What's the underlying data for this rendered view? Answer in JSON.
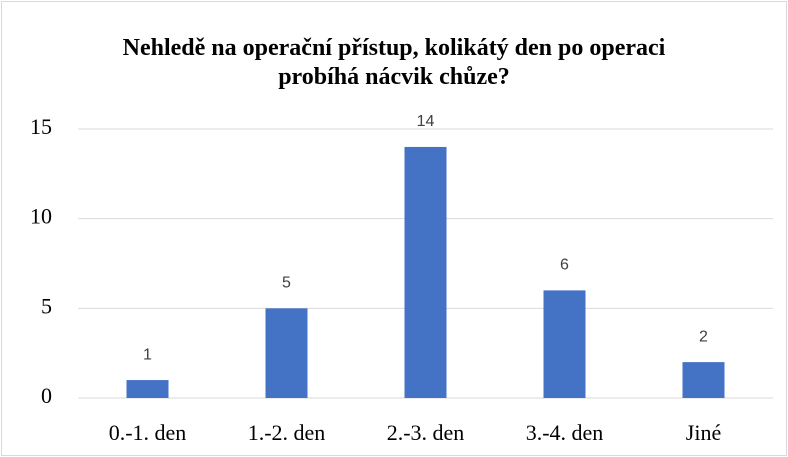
{
  "chart_data": {
    "type": "bar",
    "title": "Nehledě na operační přístup, kolikátý den po operaci probíhá nácvik chůze?",
    "categories": [
      "0.-1. den",
      "1.-2. den",
      "2.-3. den",
      "3.-4. den",
      "Jiné"
    ],
    "values": [
      1,
      5,
      14,
      6,
      2
    ],
    "color": "#4472c4",
    "ylim": [
      0,
      15
    ],
    "yticks": [
      0,
      5,
      10,
      15
    ],
    "grid": true
  }
}
